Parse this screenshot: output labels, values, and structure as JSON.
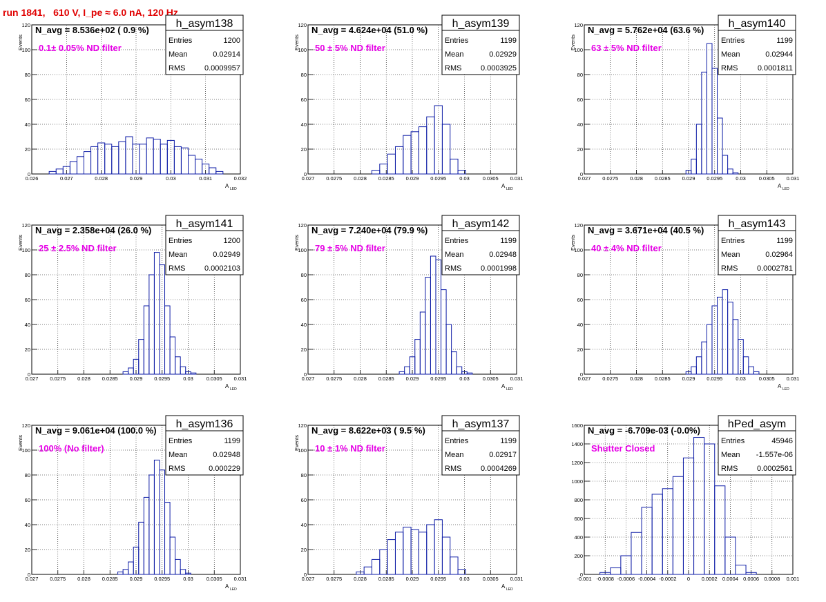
{
  "page": {
    "run_title": "run 1841,   610 V, I_pe ≈ 6.0 nA, 120 Hz"
  },
  "chart_data": [
    {
      "type": "bar",
      "histogram": "h_asym138",
      "navg_text": "N_avg = 8.536e+02 ( 0.9 %)",
      "filter_text": "0.1± 0.05% ND filter",
      "stats": [
        [
          "Entries",
          "1200"
        ],
        [
          "Mean",
          "0.02914"
        ],
        [
          "RMS",
          "0.0009957"
        ]
      ],
      "ylabel": "Events",
      "xlabel": "A",
      "xlabel_sub": "LED",
      "xlim": [
        0.026,
        0.032
      ],
      "ylim": [
        0,
        120
      ],
      "xticks": [
        0.026,
        0.027,
        0.028,
        0.029,
        0.03,
        0.031,
        0.032
      ],
      "xticklabels": [
        "0.026",
        "0.027",
        "0.028",
        "0.029",
        "0.03",
        "0.031",
        "0.032"
      ],
      "yticks": [
        0,
        20,
        40,
        60,
        80,
        100,
        120
      ],
      "yticklabels": [
        "0",
        "20",
        "40",
        "60",
        "80",
        "100",
        "120"
      ],
      "x": [
        0.0266,
        0.0268,
        0.027,
        0.0272,
        0.0274,
        0.0276,
        0.0278,
        0.028,
        0.0282,
        0.0284,
        0.0286,
        0.0288,
        0.029,
        0.0292,
        0.0294,
        0.0296,
        0.0298,
        0.03,
        0.0302,
        0.0304,
        0.0306,
        0.0308,
        0.031,
        0.0312,
        0.0314
      ],
      "values": [
        2,
        4,
        6,
        10,
        14,
        18,
        22,
        25,
        24,
        22,
        26,
        30,
        24,
        24,
        29,
        28,
        24,
        27,
        22,
        21,
        15,
        12,
        8,
        5,
        2
      ]
    },
    {
      "type": "bar",
      "histogram": "h_asym139",
      "navg_text": "N_avg = 4.624e+04 (51.0 %)",
      "filter_text": "50 ± 5% ND filter",
      "stats": [
        [
          "Entries",
          "1199"
        ],
        [
          "Mean",
          "0.02929"
        ],
        [
          "RMS",
          "0.0003925"
        ]
      ],
      "ylabel": "Events",
      "xlabel": "A",
      "xlabel_sub": "LED",
      "xlim": [
        0.027,
        0.031
      ],
      "ylim": [
        0,
        120
      ],
      "xticks": [
        0.027,
        0.0275,
        0.028,
        0.0285,
        0.029,
        0.0295,
        0.03,
        0.0305,
        0.031
      ],
      "xticklabels": [
        "0.027",
        "0.0275",
        "0.028",
        "0.0285",
        "0.029",
        "0.0295",
        "0.03",
        "0.0305",
        "0.031"
      ],
      "yticks": [
        0,
        20,
        40,
        60,
        80,
        100,
        120
      ],
      "yticklabels": [
        "0",
        "20",
        "40",
        "60",
        "80",
        "100",
        "120"
      ],
      "x": [
        0.0283,
        0.02845,
        0.0286,
        0.02875,
        0.0289,
        0.02905,
        0.0292,
        0.02935,
        0.0295,
        0.02965,
        0.0298,
        0.02995
      ],
      "values": [
        3,
        8,
        16,
        22,
        31,
        34,
        38,
        46,
        55,
        40,
        12,
        3
      ]
    },
    {
      "type": "bar",
      "histogram": "h_asym140",
      "navg_text": "N_avg = 5.762e+04 (63.6 %)",
      "filter_text": "63 ± 5% ND filter",
      "stats": [
        [
          "Entries",
          "1199"
        ],
        [
          "Mean",
          "0.02944"
        ],
        [
          "RMS",
          "0.0001811"
        ]
      ],
      "ylabel": "Events",
      "xlabel": "A",
      "xlabel_sub": "LED",
      "xlim": [
        0.027,
        0.031
      ],
      "ylim": [
        0,
        120
      ],
      "xticks": [
        0.027,
        0.0275,
        0.028,
        0.0285,
        0.029,
        0.0295,
        0.03,
        0.0305,
        0.031
      ],
      "xticklabels": [
        "0.027",
        "0.0275",
        "0.028",
        "0.0285",
        "0.029",
        "0.0295",
        "0.03",
        "0.0305",
        "0.031"
      ],
      "yticks": [
        0,
        20,
        40,
        60,
        80,
        100,
        120
      ],
      "yticklabels": [
        "0",
        "20",
        "40",
        "60",
        "80",
        "100",
        "120"
      ],
      "x": [
        0.029,
        0.0291,
        0.0292,
        0.0293,
        0.0294,
        0.0295,
        0.0296,
        0.0297,
        0.0298,
        0.0299
      ],
      "values": [
        3,
        12,
        40,
        82,
        105,
        85,
        45,
        15,
        4,
        1
      ]
    },
    {
      "type": "bar",
      "histogram": "h_asym141",
      "navg_text": "N_avg = 2.358e+04 (26.0 %)",
      "filter_text": "25 ± 2.5% ND filter",
      "stats": [
        [
          "Entries",
          "1200"
        ],
        [
          "Mean",
          "0.02949"
        ],
        [
          "RMS",
          "0.0002103"
        ]
      ],
      "ylabel": "Events",
      "xlabel": "A",
      "xlabel_sub": "LED",
      "xlim": [
        0.027,
        0.031
      ],
      "ylim": [
        0,
        120
      ],
      "xticks": [
        0.027,
        0.0275,
        0.028,
        0.0285,
        0.029,
        0.0295,
        0.03,
        0.0305,
        0.031
      ],
      "xticklabels": [
        "0.027",
        "0.0275",
        "0.028",
        "0.0285",
        "0.029",
        "0.0295",
        "0.03",
        "0.0305",
        "0.031"
      ],
      "yticks": [
        0,
        20,
        40,
        60,
        80,
        100,
        120
      ],
      "yticklabels": [
        "0",
        "20",
        "40",
        "60",
        "80",
        "100",
        "120"
      ],
      "x": [
        0.0288,
        0.0289,
        0.029,
        0.0291,
        0.0292,
        0.0293,
        0.0294,
        0.0295,
        0.0296,
        0.0297,
        0.0298,
        0.0299,
        0.03,
        0.0301
      ],
      "values": [
        2,
        5,
        12,
        28,
        55,
        80,
        98,
        88,
        55,
        30,
        14,
        6,
        2,
        1
      ]
    },
    {
      "type": "bar",
      "histogram": "h_asym142",
      "navg_text": "N_avg = 7.240e+04 (79.9 %)",
      "filter_text": "79 ± 5% ND filter",
      "stats": [
        [
          "Entries",
          "1199"
        ],
        [
          "Mean",
          "0.02948"
        ],
        [
          "RMS",
          "0.0001998"
        ]
      ],
      "ylabel": "Events",
      "xlabel": "A",
      "xlabel_sub": "LED",
      "xlim": [
        0.027,
        0.031
      ],
      "ylim": [
        0,
        120
      ],
      "xticks": [
        0.027,
        0.0275,
        0.028,
        0.0285,
        0.029,
        0.0295,
        0.03,
        0.0305,
        0.031
      ],
      "xticklabels": [
        "0.027",
        "0.0275",
        "0.028",
        "0.0285",
        "0.029",
        "0.0295",
        "0.03",
        "0.0305",
        "0.031"
      ],
      "yticks": [
        0,
        20,
        40,
        60,
        80,
        100,
        120
      ],
      "yticklabels": [
        "0",
        "20",
        "40",
        "60",
        "80",
        "100",
        "120"
      ],
      "x": [
        0.0288,
        0.0289,
        0.029,
        0.0291,
        0.0292,
        0.0293,
        0.0294,
        0.0295,
        0.0296,
        0.0297,
        0.0298,
        0.0299,
        0.03,
        0.0301
      ],
      "values": [
        2,
        6,
        14,
        28,
        50,
        78,
        95,
        92,
        68,
        40,
        18,
        6,
        2,
        1
      ]
    },
    {
      "type": "bar",
      "histogram": "h_asym143",
      "navg_text": "N_avg = 3.671e+04 (40.5 %)",
      "filter_text": "40 ± 4% ND filter",
      "stats": [
        [
          "Entries",
          "1199"
        ],
        [
          "Mean",
          "0.02964"
        ],
        [
          "RMS",
          "0.0002781"
        ]
      ],
      "ylabel": "Events",
      "xlabel": "A",
      "xlabel_sub": "LED",
      "xlim": [
        0.027,
        0.031
      ],
      "ylim": [
        0,
        120
      ],
      "xticks": [
        0.027,
        0.0275,
        0.028,
        0.0285,
        0.029,
        0.0295,
        0.03,
        0.0305,
        0.031
      ],
      "xticklabels": [
        "0.027",
        "0.0275",
        "0.028",
        "0.0285",
        "0.029",
        "0.0295",
        "0.03",
        "0.0305",
        "0.031"
      ],
      "yticks": [
        0,
        20,
        40,
        60,
        80,
        100,
        120
      ],
      "yticklabels": [
        "0",
        "20",
        "40",
        "60",
        "80",
        "100",
        "120"
      ],
      "x": [
        0.029,
        0.0291,
        0.0292,
        0.0293,
        0.0294,
        0.0295,
        0.0296,
        0.0297,
        0.0298,
        0.0299,
        0.03,
        0.0301,
        0.0302,
        0.0303
      ],
      "values": [
        2,
        6,
        14,
        26,
        40,
        55,
        62,
        68,
        58,
        44,
        28,
        14,
        6,
        2
      ]
    },
    {
      "type": "bar",
      "histogram": "h_asym136",
      "navg_text": "N_avg = 9.061e+04 (100.0 %)",
      "filter_text": "100% (No filter)",
      "stats": [
        [
          "Entries",
          "1199"
        ],
        [
          "Mean",
          "0.02948"
        ],
        [
          "RMS",
          "0.000229"
        ]
      ],
      "ylabel": "Events",
      "xlabel": "A",
      "xlabel_sub": "LED",
      "xlim": [
        0.027,
        0.031
      ],
      "ylim": [
        0,
        120
      ],
      "xticks": [
        0.027,
        0.0275,
        0.028,
        0.0285,
        0.029,
        0.0295,
        0.03,
        0.0305,
        0.031
      ],
      "xticklabels": [
        "0.027",
        "0.0275",
        "0.028",
        "0.0285",
        "0.029",
        "0.0295",
        "0.03",
        "0.0305",
        "0.031"
      ],
      "yticks": [
        0,
        20,
        40,
        60,
        80,
        100,
        120
      ],
      "yticklabels": [
        "0",
        "20",
        "40",
        "60",
        "80",
        "100",
        "120"
      ],
      "x": [
        0.0287,
        0.0288,
        0.0289,
        0.029,
        0.0291,
        0.0292,
        0.0293,
        0.0294,
        0.0295,
        0.0296,
        0.0297,
        0.0298,
        0.0299,
        0.03
      ],
      "values": [
        2,
        4,
        10,
        22,
        42,
        62,
        80,
        92,
        84,
        58,
        30,
        12,
        4,
        1
      ]
    },
    {
      "type": "bar",
      "histogram": "h_asym137",
      "navg_text": "N_avg = 8.622e+03 ( 9.5 %)",
      "filter_text": "10 ± 1% ND filter",
      "stats": [
        [
          "Entries",
          "1199"
        ],
        [
          "Mean",
          "0.02917"
        ],
        [
          "RMS",
          "0.0004269"
        ]
      ],
      "ylabel": "Events",
      "xlabel": "A",
      "xlabel_sub": "LED",
      "xlim": [
        0.027,
        0.031
      ],
      "ylim": [
        0,
        120
      ],
      "xticks": [
        0.027,
        0.0275,
        0.028,
        0.0285,
        0.029,
        0.0295,
        0.03,
        0.0305,
        0.031
      ],
      "xticklabels": [
        "0.027",
        "0.0275",
        "0.028",
        "0.0285",
        "0.029",
        "0.0295",
        "0.03",
        "0.0305",
        "0.031"
      ],
      "yticks": [
        0,
        20,
        40,
        60,
        80,
        100,
        120
      ],
      "yticklabels": [
        "0",
        "20",
        "40",
        "60",
        "80",
        "100",
        "120"
      ],
      "x": [
        0.028,
        0.02815,
        0.0283,
        0.02845,
        0.0286,
        0.02875,
        0.0289,
        0.02905,
        0.0292,
        0.02935,
        0.0295,
        0.02965,
        0.0298,
        0.02995
      ],
      "values": [
        2,
        6,
        12,
        20,
        28,
        34,
        38,
        36,
        34,
        40,
        44,
        30,
        14,
        4
      ]
    },
    {
      "type": "bar",
      "histogram": "hPed_asym",
      "navg_text": "N_avg = -6.709e-03 (-0.0%)",
      "filter_text": "Shutter Closed",
      "stats": [
        [
          "Entries",
          "45946"
        ],
        [
          "Mean",
          "-1.557e-06"
        ],
        [
          "RMS",
          "0.0002561"
        ]
      ],
      "ylabel": "",
      "xlabel": "",
      "xlabel_sub": "",
      "xlim": [
        -0.001,
        0.001
      ],
      "ylim": [
        0,
        1600
      ],
      "xticks": [
        -0.001,
        -0.0008,
        -0.0006,
        -0.0004,
        -0.0002,
        0,
        0.0002,
        0.0004,
        0.0006,
        0.0008,
        0.001
      ],
      "xticklabels": [
        "-0.001",
        "-0.0008",
        "-0.0006",
        "-0.0004",
        "-0.0002",
        "0",
        "0.0002",
        "0.0004",
        "0.0006",
        "0.0008",
        "0.001"
      ],
      "yticks": [
        0,
        200,
        400,
        600,
        800,
        1000,
        1200,
        1400,
        1600
      ],
      "yticklabels": [
        "0",
        "200",
        "400",
        "600",
        "800",
        "1000",
        "1200",
        "1400",
        "1600"
      ],
      "x": [
        -0.0008,
        -0.0007,
        -0.0006,
        -0.0005,
        -0.0004,
        -0.0003,
        -0.0002,
        -0.0001,
        0.0,
        0.0001,
        0.0002,
        0.0003,
        0.0004,
        0.0005,
        0.0006
      ],
      "values": [
        20,
        70,
        200,
        450,
        720,
        860,
        920,
        1050,
        1250,
        1470,
        1400,
        950,
        400,
        100,
        20
      ]
    }
  ]
}
